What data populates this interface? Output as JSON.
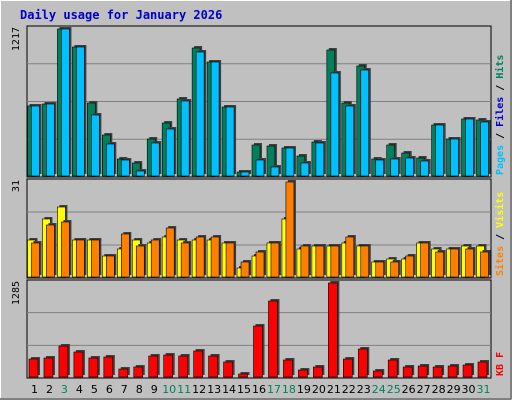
{
  "title": "Daily usage for January 2026",
  "colors": {
    "page_bg": "#c0c0c0",
    "plot_bg": "#c0c0c0",
    "title": "#0000cc",
    "hits": "#00805c",
    "files": "#00c0ff",
    "pages": "#00c0ff",
    "visits": "#ffff00",
    "sites": "#ff8000",
    "kbytes": "#ff0000",
    "weekend_day": "#00805c",
    "weekday": "#000000"
  },
  "chart_data": [
    {
      "type": "bar",
      "name": "hits-files-pages",
      "ymax_label": "1217",
      "right_labels": [
        {
          "text": "Pages",
          "color": "#00c0ff"
        },
        {
          "text": " / ",
          "color": "#000000"
        },
        {
          "text": "Files",
          "color": "#0000cc"
        },
        {
          "text": " / ",
          "color": "#000000"
        },
        {
          "text": "Hits",
          "color": "#00805c"
        }
      ],
      "ylim": [
        0,
        1217
      ],
      "series": [
        {
          "name": "Hits",
          "color": "#00805c",
          "values": [
            576,
            592,
            1217,
            1070,
            607,
            343,
            140,
            104,
            303,
            438,
            640,
            1057,
            944,
            574,
            33,
            254,
            247,
            230,
            166,
            283,
            1045,
            603,
            907,
            138,
            256,
            190,
            153,
            421,
            306,
            469,
            464
          ]
        },
        {
          "name": "Files",
          "color": "#00c0ff",
          "values": [
            576,
            592,
            1217,
            1070,
            505,
            269,
            131,
            44,
            274,
            389,
            622,
            1025,
            944,
            573,
            30,
            129,
            74,
            231,
            104,
            277,
            855,
            582,
            880,
            136,
            144,
            145,
            121,
            421,
            304,
            469,
            444
          ]
        }
      ]
    },
    {
      "type": "bar",
      "name": "visits-sites",
      "ymax_label": "31",
      "right_labels": [
        {
          "text": "Sites",
          "color": "#ff8000"
        },
        {
          "text": " / ",
          "color": "#000000"
        },
        {
          "text": "Visits",
          "color": "#ffff00"
        }
      ],
      "ylim": [
        0,
        31
      ],
      "series": [
        {
          "name": "Visits",
          "color": "#ffff00",
          "values": [
            12,
            19,
            23,
            12,
            12,
            7,
            9,
            12,
            11,
            13,
            12,
            12,
            12,
            11,
            3,
            7,
            11,
            19,
            9,
            10,
            10,
            11,
            10,
            5,
            6,
            6,
            11,
            9,
            9,
            10,
            10
          ]
        },
        {
          "name": "Sites",
          "color": "#ff8000",
          "values": [
            11,
            17,
            18,
            12,
            12,
            7,
            14,
            10,
            12,
            16,
            11,
            13,
            13,
            11,
            5,
            8,
            11,
            31,
            10,
            10,
            10,
            13,
            10,
            5,
            5,
            7,
            11,
            8,
            9,
            9,
            8
          ]
        }
      ]
    },
    {
      "type": "bar",
      "name": "kbytes",
      "ymax_label": "1285",
      "right_labels": [
        {
          "text": "KB",
          "color": "#ff0000"
        },
        {
          "text": " ",
          "color": "#000000"
        },
        {
          "text": "F",
          "color": "#ff0000"
        }
      ],
      "ylim": [
        0,
        1285
      ],
      "series": [
        {
          "name": "KB F",
          "color": "#ff0000",
          "values": [
            250,
            254,
            430,
            346,
            263,
            272,
            104,
            142,
            288,
            296,
            288,
            354,
            283,
            208,
            37,
            695,
            1040,
            231,
            102,
            142,
            1285,
            240,
            381,
            80,
            231,
            143,
            150,
            138,
            157,
            159,
            210
          ]
        }
      ]
    }
  ],
  "x_days": [
    {
      "label": "1",
      "weekend": false
    },
    {
      "label": "2",
      "weekend": false
    },
    {
      "label": "3",
      "weekend": true
    },
    {
      "label": "4",
      "weekend": false
    },
    {
      "label": "5",
      "weekend": false
    },
    {
      "label": "6",
      "weekend": false
    },
    {
      "label": "7",
      "weekend": false
    },
    {
      "label": "8",
      "weekend": false
    },
    {
      "label": "9",
      "weekend": false
    },
    {
      "label": "10",
      "weekend": true
    },
    {
      "label": "11",
      "weekend": true
    },
    {
      "label": "12",
      "weekend": false
    },
    {
      "label": "13",
      "weekend": false
    },
    {
      "label": "14",
      "weekend": false
    },
    {
      "label": "15",
      "weekend": false
    },
    {
      "label": "16",
      "weekend": false
    },
    {
      "label": "17",
      "weekend": true
    },
    {
      "label": "18",
      "weekend": true
    },
    {
      "label": "19",
      "weekend": false
    },
    {
      "label": "20",
      "weekend": false
    },
    {
      "label": "21",
      "weekend": false
    },
    {
      "label": "22",
      "weekend": false
    },
    {
      "label": "23",
      "weekend": false
    },
    {
      "label": "24",
      "weekend": true
    },
    {
      "label": "25",
      "weekend": true
    },
    {
      "label": "26",
      "weekend": false
    },
    {
      "label": "27",
      "weekend": false
    },
    {
      "label": "28",
      "weekend": false
    },
    {
      "label": "29",
      "weekend": false
    },
    {
      "label": "30",
      "weekend": false
    },
    {
      "label": "31",
      "weekend": true
    }
  ]
}
